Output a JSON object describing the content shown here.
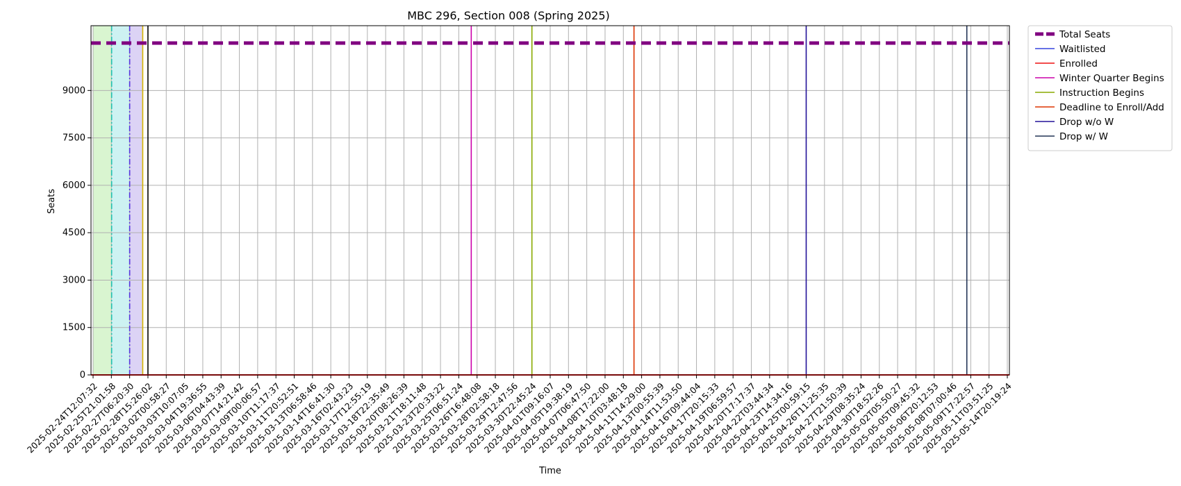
{
  "chart_data": {
    "type": "line",
    "title": "MBC 296, Section 008 (Spring 2025)",
    "xlabel": "Time",
    "ylabel": "Seats",
    "grid": true,
    "legend_position": "outside-top-right",
    "ylim": [
      0,
      11050
    ],
    "yticks": [
      0,
      1500,
      3000,
      4500,
      6000,
      7500,
      9000
    ],
    "x_tick_labels": [
      "2025-02-24T12:07:32",
      "2025-02-25T21:01:58",
      "2025-02-27T06:20:30",
      "2025-02-28T15:26:02",
      "2025-03-02T00:58:27",
      "2025-03-03T10:07:05",
      "2025-03-04T19:36:55",
      "2025-03-06T04:43:39",
      "2025-03-07T14:21:42",
      "2025-03-09T00:06:57",
      "2025-03-10T11:17:37",
      "2025-03-11T20:52:51",
      "2025-03-13T06:58:46",
      "2025-03-14T16:41:30",
      "2025-03-16T02:43:23",
      "2025-03-17T12:55:19",
      "2025-03-18T22:35:49",
      "2025-03-20T08:26:39",
      "2025-03-21T18:11:48",
      "2025-03-23T20:33:22",
      "2025-03-25T06:51:24",
      "2025-03-26T16:48:08",
      "2025-03-28T02:58:18",
      "2025-03-29T12:47:56",
      "2025-03-30T22:45:24",
      "2025-04-01T09:16:07",
      "2025-04-05T19:38:19",
      "2025-04-07T06:47:50",
      "2025-04-08T17:22:00",
      "2025-04-10T03:48:18",
      "2025-04-11T14:29:00",
      "2025-04-13T00:55:39",
      "2025-04-14T11:53:50",
      "2025-04-16T09:44:04",
      "2025-04-17T20:15:33",
      "2025-04-19T06:59:57",
      "2025-04-20T17:17:37",
      "2025-04-22T03:44:34",
      "2025-04-23T14:34:16",
      "2025-04-25T00:59:15",
      "2025-04-26T11:25:35",
      "2025-04-27T21:50:39",
      "2025-04-29T08:35:24",
      "2025-04-30T18:52:26",
      "2025-05-02T05:50:27",
      "2025-05-05T09:45:32",
      "2025-05-06T20:12:53",
      "2025-05-08T07:00:46",
      "2025-05-09T17:22:57",
      "2025-05-11T03:51:25",
      "2025-05-14T20:19:24"
    ],
    "series": [
      {
        "name": "Total Seats",
        "color": "#800080",
        "style": "dashed",
        "value": 10500
      },
      {
        "name": "Waitlisted",
        "color": "#3344dd",
        "style": "solid",
        "value": 0
      },
      {
        "name": "Enrolled",
        "color": "#ee1111",
        "style": "solid",
        "value": 0
      }
    ],
    "events": [
      {
        "name": "Winter Quarter Begins",
        "color": "#cc00aa",
        "x": "2025-03-26T06:00:00"
      },
      {
        "name": "Instruction Begins",
        "color": "#88aa00",
        "x": "2025-03-30T22:45:24"
      },
      {
        "name": "Deadline to Enroll/Add",
        "color": "#dd3300",
        "x": "2025-04-11T00:00:00"
      },
      {
        "name": "Drop w/o W",
        "color": "#221199",
        "x": "2025-04-25T00:59:15"
      },
      {
        "name": "Drop w/ W",
        "color": "#223355",
        "x": "2025-05-09T10:00:00"
      }
    ],
    "shaded_regions": [
      {
        "color": "#d9f5d0",
        "start": "2025-02-24T12:07:32",
        "end": "2025-02-25T21:01:58"
      },
      {
        "color": "#cdf2f2",
        "start": "2025-02-25T21:01:58",
        "end": "2025-02-27T06:20:30"
      },
      {
        "color": "#dcd3f5",
        "start": "2025-02-27T06:20:30",
        "end": "2025-02-28T06:00:00"
      }
    ],
    "early_markers": [
      {
        "color": "#20c0b0",
        "style": "dashdot",
        "x": "2025-02-25T21:30:00"
      },
      {
        "color": "#5533dd",
        "style": "dashdot",
        "x": "2025-02-27T06:20:30"
      },
      {
        "color": "#d4b400",
        "style": "solid",
        "x": "2025-02-28T06:00:00"
      },
      {
        "color": "#000000",
        "style": "solid",
        "x": "2025-02-28T15:26:02"
      }
    ]
  }
}
